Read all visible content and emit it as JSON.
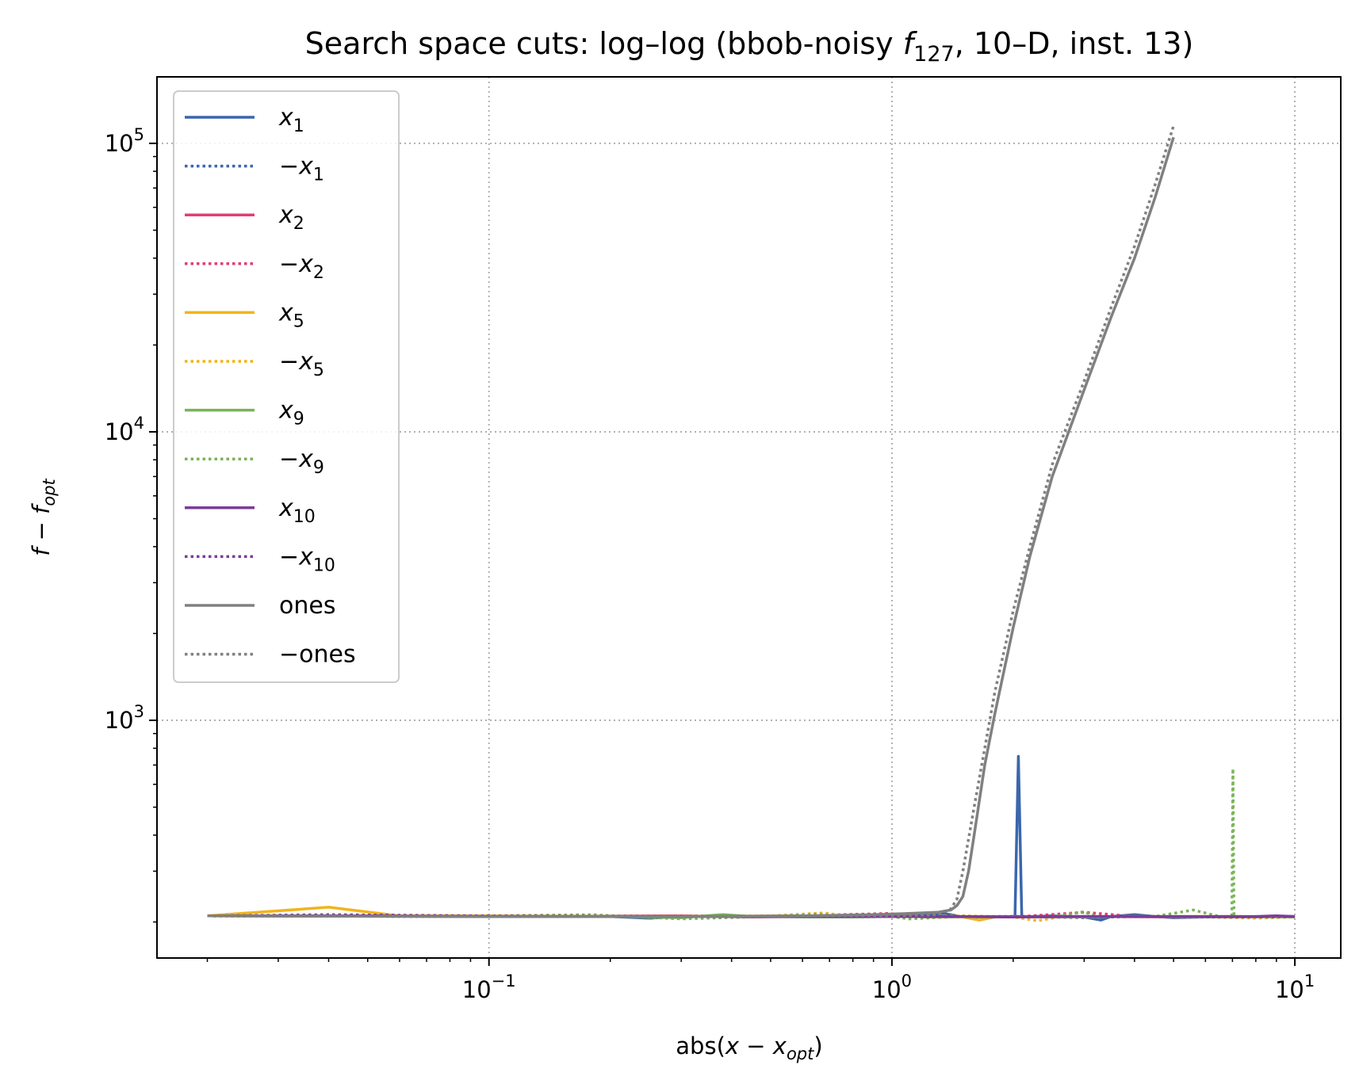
{
  "chart_data": {
    "type": "line",
    "title": "Search space cuts: log–log (bbob-noisy f127, 10–D, inst. 13)",
    "title_parts": {
      "prefix": "Search space cuts: log–log (bbob-noisy ",
      "func_letter": "f",
      "func_sub": "127",
      "suffix": ", 10–D, inst. 13)"
    },
    "xlabel": "abs(x − x_opt)",
    "xlabel_parts": {
      "pre": "abs(",
      "var": "x − x",
      "sub": "opt",
      "post": ")"
    },
    "ylabel": "f − f_opt",
    "ylabel_parts": {
      "var": "f − f",
      "sub": "opt"
    },
    "x_scale": "log",
    "y_scale": "log",
    "xlim": [
      0.015,
      13
    ],
    "ylim": [
      150,
      170000
    ],
    "grid": true,
    "legend_position": "upper-left",
    "x_ticks": [
      {
        "value": 0.1,
        "base": "10",
        "exp": "−1"
      },
      {
        "value": 1,
        "base": "10",
        "exp": "0"
      },
      {
        "value": 10,
        "base": "10",
        "exp": "1"
      }
    ],
    "y_ticks": [
      {
        "value": 1000,
        "base": "10",
        "exp": "3"
      },
      {
        "value": 10000,
        "base": "10",
        "exp": "4"
      },
      {
        "value": 100000,
        "base": "10",
        "exp": "5"
      }
    ],
    "series": [
      {
        "name": "x1",
        "legend_sign": "",
        "legend_var": "x",
        "legend_sub": "1",
        "color": "#3b66ad",
        "style": "solid",
        "points": [
          [
            0.02,
            210
          ],
          [
            0.05,
            210
          ],
          [
            0.1,
            209
          ],
          [
            0.2,
            209
          ],
          [
            0.25,
            206
          ],
          [
            0.3,
            209
          ],
          [
            0.5,
            209
          ],
          [
            0.7,
            208
          ],
          [
            1.0,
            209
          ],
          [
            1.35,
            214
          ],
          [
            1.5,
            208
          ],
          [
            1.9,
            208
          ],
          [
            2.02,
            208
          ],
          [
            2.06,
            750
          ],
          [
            2.1,
            208
          ],
          [
            2.5,
            210
          ],
          [
            3.0,
            208
          ],
          [
            3.3,
            203
          ],
          [
            3.5,
            209
          ],
          [
            4.0,
            212
          ],
          [
            4.5,
            209
          ],
          [
            5.0,
            207
          ],
          [
            6.0,
            208
          ],
          [
            8.0,
            208
          ],
          [
            10.0,
            208
          ]
        ]
      },
      {
        "name": "−x1",
        "legend_sign": "−",
        "legend_var": "x",
        "legend_sub": "1",
        "color": "#3b66ad",
        "style": "dotted",
        "points": [
          [
            0.02,
            210
          ],
          [
            0.1,
            209
          ],
          [
            0.3,
            210
          ],
          [
            0.6,
            209
          ],
          [
            1.0,
            209
          ],
          [
            1.3,
            212
          ],
          [
            1.5,
            208
          ],
          [
            2.0,
            209
          ],
          [
            3.0,
            207
          ],
          [
            4.0,
            209
          ],
          [
            6.0,
            208
          ],
          [
            10.0,
            208
          ]
        ]
      },
      {
        "name": "x2",
        "legend_sign": "",
        "legend_var": "x",
        "legend_sub": "2",
        "color": "#e23d75",
        "style": "solid",
        "points": [
          [
            0.02,
            210
          ],
          [
            0.1,
            209
          ],
          [
            0.3,
            210
          ],
          [
            0.45,
            208
          ],
          [
            0.6,
            209
          ],
          [
            1.0,
            212
          ],
          [
            1.2,
            208
          ],
          [
            2.0,
            209
          ],
          [
            3.0,
            209
          ],
          [
            5.0,
            208
          ],
          [
            7.0,
            209
          ],
          [
            10.0,
            208
          ]
        ]
      },
      {
        "name": "−x2",
        "legend_sign": "−",
        "legend_var": "x",
        "legend_sub": "2",
        "color": "#e23d75",
        "style": "dotted",
        "points": [
          [
            0.02,
            210
          ],
          [
            0.1,
            209
          ],
          [
            0.5,
            209
          ],
          [
            0.98,
            214
          ],
          [
            1.2,
            209
          ],
          [
            2.0,
            208
          ],
          [
            3.0,
            216
          ],
          [
            4.0,
            209
          ],
          [
            6.0,
            208
          ],
          [
            10.0,
            209
          ]
        ]
      },
      {
        "name": "x5",
        "legend_sign": "",
        "legend_var": "x",
        "legend_sub": "5",
        "color": "#f1b419",
        "style": "solid",
        "points": [
          [
            0.02,
            210
          ],
          [
            0.04,
            225
          ],
          [
            0.06,
            210
          ],
          [
            0.1,
            210
          ],
          [
            0.3,
            209
          ],
          [
            0.6,
            210
          ],
          [
            1.0,
            209
          ],
          [
            1.5,
            208
          ],
          [
            1.65,
            203
          ],
          [
            1.8,
            208
          ],
          [
            2.5,
            208
          ],
          [
            4.0,
            209
          ],
          [
            7.0,
            209
          ],
          [
            10.0,
            208
          ]
        ]
      },
      {
        "name": "−x5",
        "legend_sign": "−",
        "legend_var": "x",
        "legend_sub": "5",
        "color": "#f1b419",
        "style": "dotted",
        "points": [
          [
            0.02,
            210
          ],
          [
            0.1,
            209
          ],
          [
            0.5,
            210
          ],
          [
            0.68,
            215
          ],
          [
            0.8,
            208
          ],
          [
            1.0,
            209
          ],
          [
            1.5,
            210
          ],
          [
            2.0,
            208
          ],
          [
            2.3,
            202
          ],
          [
            2.6,
            208
          ],
          [
            4.0,
            209
          ],
          [
            6.0,
            208
          ],
          [
            8.0,
            206
          ],
          [
            10.0,
            208
          ]
        ]
      },
      {
        "name": "x9",
        "legend_sign": "",
        "legend_var": "x",
        "legend_sub": "9",
        "color": "#79b458",
        "style": "solid",
        "points": [
          [
            0.02,
            210
          ],
          [
            0.1,
            209
          ],
          [
            0.2,
            209
          ],
          [
            0.3,
            207
          ],
          [
            0.38,
            212
          ],
          [
            0.45,
            209
          ],
          [
            0.7,
            208
          ],
          [
            1.0,
            209
          ],
          [
            2.0,
            208
          ],
          [
            4.0,
            209
          ],
          [
            7.0,
            208
          ],
          [
            10.0,
            208
          ]
        ]
      },
      {
        "name": "−x9",
        "legend_sign": "−",
        "legend_var": "x",
        "legend_sub": "9",
        "color": "#79b458",
        "style": "dotted",
        "points": [
          [
            0.02,
            210
          ],
          [
            0.1,
            210
          ],
          [
            0.18,
            212
          ],
          [
            0.22,
            209
          ],
          [
            0.3,
            205
          ],
          [
            0.5,
            209
          ],
          [
            0.66,
            213
          ],
          [
            0.8,
            208
          ],
          [
            1.0,
            209
          ],
          [
            1.1,
            205
          ],
          [
            1.5,
            209
          ],
          [
            2.5,
            208
          ],
          [
            3.0,
            217
          ],
          [
            3.2,
            209
          ],
          [
            4.5,
            209
          ],
          [
            5.6,
            220
          ],
          [
            6.5,
            209
          ],
          [
            6.98,
            208
          ],
          [
            7.02,
            680
          ],
          [
            7.06,
            209
          ],
          [
            8.0,
            208
          ],
          [
            10.0,
            208
          ]
        ]
      },
      {
        "name": "x10",
        "legend_sign": "",
        "legend_var": "x",
        "legend_sub": "10",
        "color": "#7b3c97",
        "style": "solid",
        "points": [
          [
            0.02,
            210
          ],
          [
            0.05,
            210
          ],
          [
            0.1,
            209
          ],
          [
            0.2,
            209
          ],
          [
            0.5,
            209
          ],
          [
            1.0,
            209
          ],
          [
            1.5,
            209
          ],
          [
            2.0,
            208
          ],
          [
            3.0,
            209
          ],
          [
            4.0,
            209
          ],
          [
            6.0,
            209
          ],
          [
            8.0,
            209
          ],
          [
            9.0,
            210
          ],
          [
            10.0,
            209
          ]
        ]
      },
      {
        "name": "−x10",
        "legend_sign": "−",
        "legend_var": "x",
        "legend_sub": "10",
        "color": "#7b3c97",
        "style": "dotted",
        "points": [
          [
            0.02,
            210
          ],
          [
            0.04,
            212
          ],
          [
            0.1,
            210
          ],
          [
            0.3,
            209
          ],
          [
            0.6,
            209
          ],
          [
            1.0,
            209
          ],
          [
            2.0,
            209
          ],
          [
            4.0,
            209
          ],
          [
            7.0,
            208
          ],
          [
            10.0,
            209
          ]
        ]
      },
      {
        "name": "ones",
        "legend_sign": "",
        "legend_var": "ones",
        "legend_sub": "",
        "color": "#808080",
        "style": "solid",
        "points": [
          [
            0.02,
            210
          ],
          [
            0.1,
            209
          ],
          [
            0.3,
            209
          ],
          [
            0.6,
            210
          ],
          [
            0.9,
            212
          ],
          [
            1.1,
            214
          ],
          [
            1.3,
            216
          ],
          [
            1.4,
            220
          ],
          [
            1.45,
            228
          ],
          [
            1.5,
            245
          ],
          [
            1.55,
            300
          ],
          [
            1.6,
            400
          ],
          [
            1.7,
            700
          ],
          [
            1.8,
            1050
          ],
          [
            1.9,
            1500
          ],
          [
            2.0,
            2100
          ],
          [
            2.2,
            3700
          ],
          [
            2.5,
            7000
          ],
          [
            3.0,
            14000
          ],
          [
            3.5,
            25000
          ],
          [
            4.0,
            40000
          ],
          [
            4.5,
            65000
          ],
          [
            5.0,
            105000
          ]
        ]
      },
      {
        "name": "−ones",
        "legend_sign": "−",
        "legend_var": "ones",
        "legend_sub": "",
        "color": "#808080",
        "style": "dotted",
        "points": [
          [
            0.02,
            210
          ],
          [
            0.1,
            209
          ],
          [
            0.3,
            209
          ],
          [
            0.7,
            210
          ],
          [
            1.0,
            210
          ],
          [
            1.3,
            212
          ],
          [
            1.4,
            222
          ],
          [
            1.45,
            240
          ],
          [
            1.5,
            300
          ],
          [
            1.6,
            500
          ],
          [
            1.7,
            800
          ],
          [
            1.8,
            1250
          ],
          [
            1.9,
            1750
          ],
          [
            2.0,
            2400
          ],
          [
            2.2,
            4000
          ],
          [
            2.5,
            7700
          ],
          [
            3.0,
            15000
          ],
          [
            3.5,
            27000
          ],
          [
            4.0,
            44000
          ],
          [
            4.5,
            72000
          ],
          [
            5.0,
            115000
          ]
        ]
      }
    ]
  }
}
